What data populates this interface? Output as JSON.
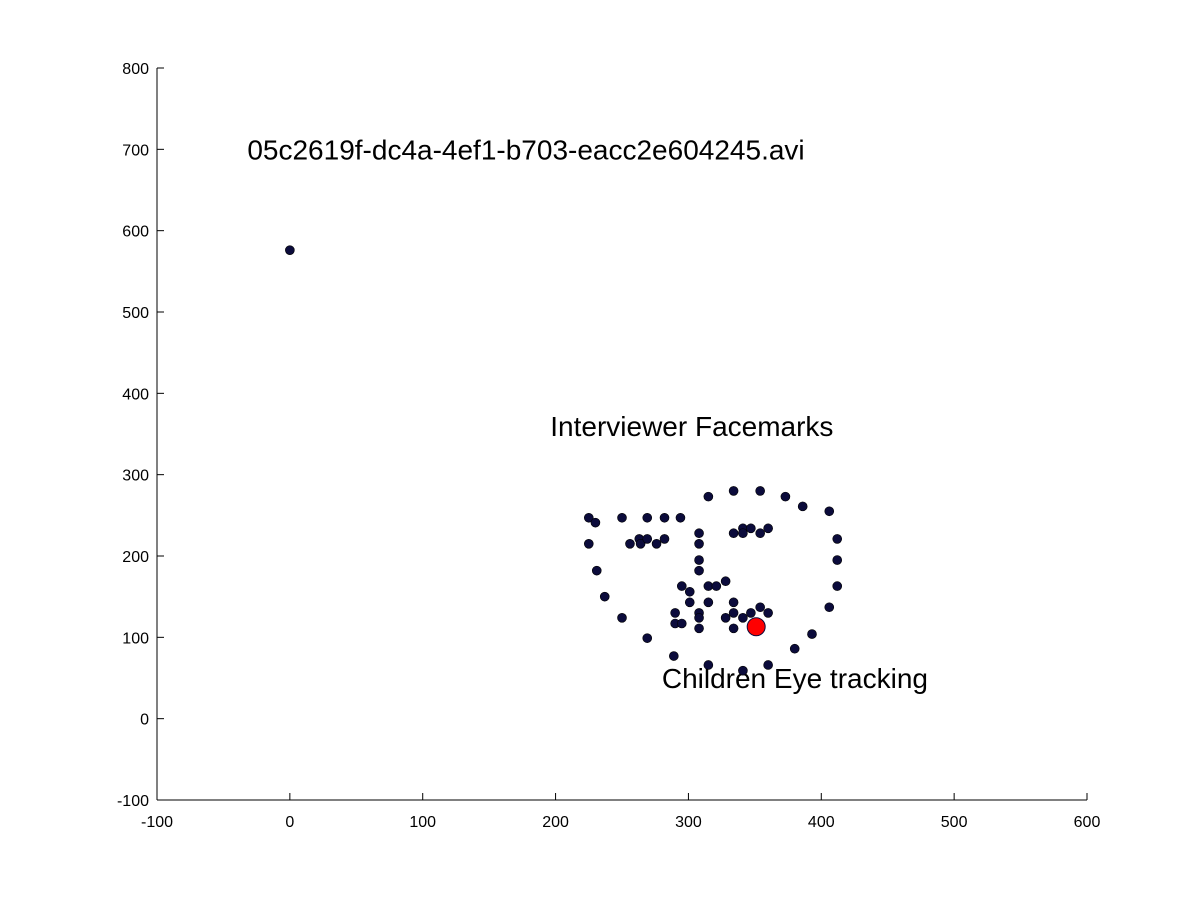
{
  "chart_data": {
    "type": "scatter",
    "xlim": [
      -100,
      600
    ],
    "ylim": [
      -100,
      800
    ],
    "x_ticks": [
      -100,
      0,
      100,
      200,
      300,
      400,
      500,
      600
    ],
    "y_ticks": [
      -100,
      0,
      100,
      200,
      300,
      400,
      500,
      600,
      700,
      800
    ],
    "x_tick_labels": [
      "-100",
      "0",
      "100",
      "200",
      "300",
      "400",
      "500",
      "600"
    ],
    "y_tick_labels": [
      "-100",
      "0",
      "100",
      "200",
      "300",
      "400",
      "500",
      "600",
      "700",
      "800"
    ],
    "grid": false,
    "annotations": [
      {
        "text": "05c2619f-dc4a-4ef1-b703-eacc2e604245.avi",
        "x": -32,
        "y": 700
      },
      {
        "text": "Interviewer Facemarks",
        "x": 196,
        "y": 360
      },
      {
        "text": "Children Eye tracking",
        "x": 280,
        "y": 50
      }
    ],
    "series": [
      {
        "marker_color": "#0b0b3b",
        "points": [
          [
            0,
            576
          ],
          [
            225,
            247
          ],
          [
            225,
            215
          ],
          [
            230,
            241
          ],
          [
            231,
            182
          ],
          [
            237,
            150
          ],
          [
            250,
            124
          ],
          [
            250,
            247
          ],
          [
            256,
            215
          ],
          [
            263,
            221
          ],
          [
            264,
            215
          ],
          [
            269,
            247
          ],
          [
            269,
            221
          ],
          [
            276,
            215
          ],
          [
            282,
            247
          ],
          [
            282,
            221
          ],
          [
            294,
            247
          ],
          [
            290,
            130
          ],
          [
            290,
            117
          ],
          [
            269,
            99
          ],
          [
            289,
            77
          ],
          [
            295,
            117
          ],
          [
            295,
            163
          ],
          [
            301,
            156
          ],
          [
            301,
            143
          ],
          [
            308,
            228
          ],
          [
            308,
            215
          ],
          [
            308,
            195
          ],
          [
            308,
            182
          ],
          [
            308,
            130
          ],
          [
            308,
            124
          ],
          [
            308,
            111
          ],
          [
            315,
            273
          ],
          [
            315,
            163
          ],
          [
            315,
            143
          ],
          [
            315,
            66
          ],
          [
            321,
            163
          ],
          [
            328,
            169
          ],
          [
            328,
            124
          ],
          [
            334,
            280
          ],
          [
            334,
            228
          ],
          [
            334,
            143
          ],
          [
            334,
            130
          ],
          [
            334,
            111
          ],
          [
            341,
            234
          ],
          [
            341,
            228
          ],
          [
            341,
            124
          ],
          [
            341,
            59
          ],
          [
            347,
            234
          ],
          [
            347,
            130
          ],
          [
            354,
            280
          ],
          [
            354,
            228
          ],
          [
            354,
            137
          ],
          [
            360,
            234
          ],
          [
            360,
            130
          ],
          [
            360,
            66
          ],
          [
            373,
            273
          ],
          [
            380,
            86
          ],
          [
            386,
            261
          ],
          [
            393,
            104
          ],
          [
            406,
            255
          ],
          [
            406,
            137
          ],
          [
            412,
            221
          ],
          [
            412,
            195
          ],
          [
            412,
            163
          ]
        ]
      },
      {
        "marker_color": "#ff0000",
        "points": [
          [
            351,
            113
          ]
        ]
      }
    ]
  }
}
